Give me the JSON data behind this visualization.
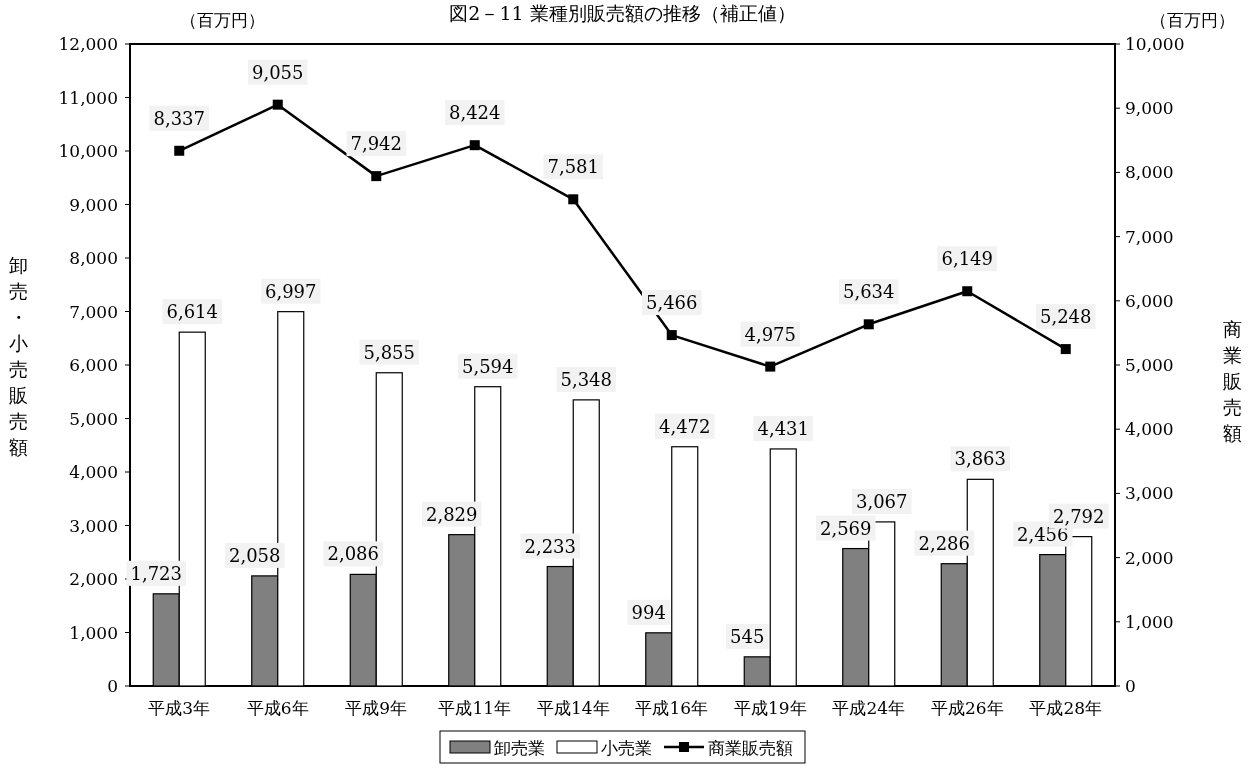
{
  "chart_data": {
    "type": "bar",
    "title": "図2－11 業種別販売額の推移（補正値）",
    "ylabel": "卸売・小売販売額",
    "y2label": "商業販売額",
    "annotations": [
      "（百万円）",
      "（百万円）"
    ],
    "categories": [
      "平成3年",
      "平成6年",
      "平成9年",
      "平成11年",
      "平成14年",
      "平成16年",
      "平成19年",
      "平成24年",
      "平成26年",
      "平成28年"
    ],
    "series": [
      {
        "name": "卸売業",
        "color": "#808080",
        "values": [
          1723,
          2058,
          2086,
          2829,
          2233,
          994,
          545,
          2569,
          2286,
          2456
        ],
        "value_labels": [
          "1,723",
          "2,058",
          "2,086",
          "2,829",
          "2,233",
          "994",
          "545",
          "2,569",
          "2,286",
          "2,456"
        ]
      },
      {
        "name": "小売業",
        "color": "#ffffff",
        "values": [
          6614,
          6997,
          5855,
          5594,
          5348,
          4472,
          4431,
          3067,
          3863,
          2792
        ],
        "value_labels": [
          "6,614",
          "6,997",
          "5,855",
          "5,594",
          "5,348",
          "4,472",
          "4,431",
          "3,067",
          "3,863",
          "2,792"
        ]
      },
      {
        "name": "商業販売額",
        "type": "line",
        "axis": "y2",
        "color": "#000000",
        "marker": "square",
        "values": [
          8337,
          9055,
          7942,
          8424,
          7581,
          5466,
          4975,
          5634,
          6149,
          5248
        ],
        "value_labels": [
          "8,337",
          "9,055",
          "7,942",
          "8,424",
          "7,581",
          "5,466",
          "4,975",
          "5,634",
          "6,149",
          "5,248"
        ]
      }
    ],
    "ylim": [
      0,
      12000
    ],
    "yticks": [
      0,
      {
        "value": 1000,
        "label": "1,000"
      },
      {
        "value": 2000,
        "label": "2,000"
      },
      {
        "value": 3000,
        "label": "3,000"
      },
      {
        "value": 4000,
        "label": "4,000"
      },
      {
        "value": 5000,
        "label": "5,000"
      },
      {
        "value": 6000,
        "label": "6,000"
      },
      {
        "value": 7000,
        "label": "7,000"
      },
      {
        "value": 8000,
        "label": "8,000"
      },
      {
        "value": 9000,
        "label": "9,000"
      },
      {
        "value": 10000,
        "label": "10,000"
      },
      {
        "value": 11000,
        "label": "11,000"
      },
      {
        "value": 12000,
        "label": "12,000"
      }
    ],
    "y2lim": [
      0,
      10000
    ],
    "y2ticks": [
      0,
      {
        "value": 1000,
        "label": "1,000"
      },
      {
        "value": 2000,
        "label": "2,000"
      },
      {
        "value": 3000,
        "label": "3,000"
      },
      {
        "value": 4000,
        "label": "4,000"
      },
      {
        "value": 5000,
        "label": "5,000"
      },
      {
        "value": 6000,
        "label": "6,000"
      },
      {
        "value": 7000,
        "label": "7,000"
      },
      {
        "value": 8000,
        "label": "8,000"
      },
      {
        "value": 9000,
        "label": "9,000"
      },
      {
        "value": 10000,
        "label": "10,000"
      }
    ],
    "grid": false,
    "legend": "bottom"
  }
}
